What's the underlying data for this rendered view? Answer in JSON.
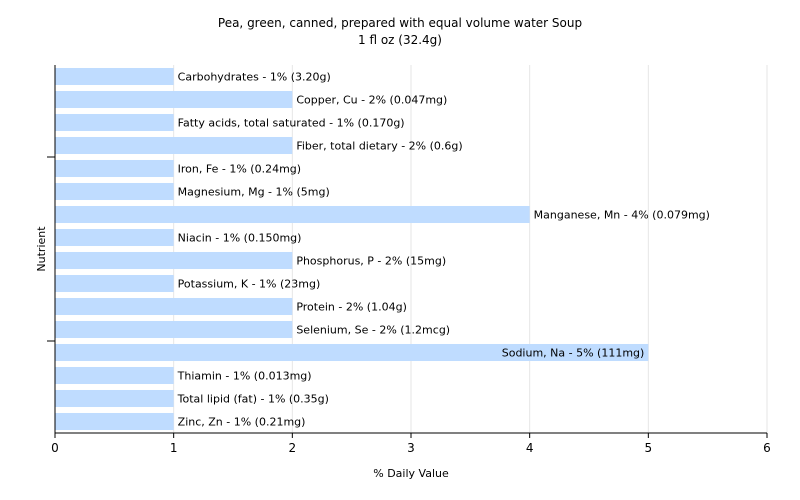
{
  "chart_data": {
    "type": "bar",
    "orientation": "horizontal",
    "title": "Pea, green, canned, prepared with equal volume water Soup",
    "subtitle": "1 fl oz (32.4g)",
    "xlabel": "% Daily Value",
    "ylabel": "Nutrient",
    "xlim": [
      0,
      6
    ],
    "xticks": [
      "0",
      "1",
      "2",
      "3",
      "4",
      "5",
      "6"
    ],
    "grid": true,
    "categories": [
      "Carbohydrates",
      "Copper, Cu",
      "Fatty acids, total saturated",
      "Fiber, total dietary",
      "Iron, Fe",
      "Magnesium, Mg",
      "Manganese, Mn",
      "Niacin",
      "Phosphorus, P",
      "Potassium, K",
      "Protein",
      "Selenium, Se",
      "Sodium, Na",
      "Thiamin",
      "Total lipid (fat)",
      "Zinc, Zn"
    ],
    "values": [
      1,
      2,
      1,
      2,
      1,
      1,
      4,
      1,
      2,
      1,
      2,
      2,
      5,
      1,
      1,
      1
    ],
    "labels": [
      "Carbohydrates - 1% (3.20g)",
      "Copper, Cu - 2% (0.047mg)",
      "Fatty acids, total saturated - 1% (0.170g)",
      "Fiber, total dietary - 2% (0.6g)",
      "Iron, Fe - 1% (0.24mg)",
      "Magnesium, Mg - 1% (5mg)",
      "Manganese, Mn - 4% (0.079mg)",
      "Niacin - 1% (0.150mg)",
      "Phosphorus, P - 2% (15mg)",
      "Potassium, K - 1% (23mg)",
      "Protein - 2% (1.04g)",
      "Selenium, Se - 2% (1.2mcg)",
      "Sodium, Na - 5% (111mg)",
      "Thiamin - 1% (0.013mg)",
      "Total lipid (fat) - 1% (0.35g)",
      "Zinc, Zn - 1% (0.21mg)"
    ],
    "colors": {
      "bar": "#bfdcff",
      "grid": "#e6e6e6",
      "axis": "#000000"
    }
  }
}
